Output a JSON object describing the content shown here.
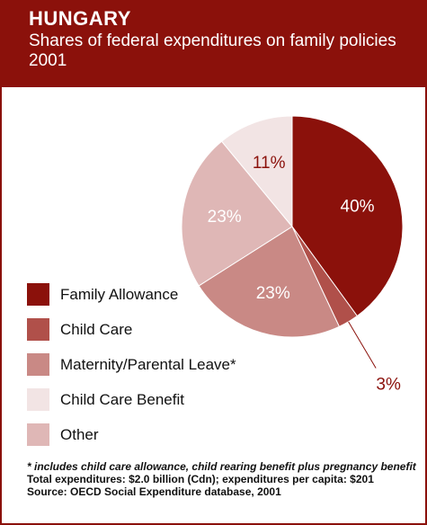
{
  "header": {
    "country": "HUNGARY",
    "subtitle": "Shares of federal expenditures on family policies",
    "year": "2001"
  },
  "colors": {
    "frame": "#8b110b",
    "family_allowance": "#8b110b",
    "child_care": "#b0504a",
    "maternity_parental": "#c98985",
    "child_care_benefit": "#f2e4e4",
    "other": "#dfb7b6"
  },
  "chart_data": {
    "type": "pie",
    "title": "Shares of federal expenditures on family policies",
    "slices": [
      {
        "label": "Family Allowance",
        "value": 40,
        "display": "40%"
      },
      {
        "label": "Child Care",
        "value": 3,
        "display": "3%"
      },
      {
        "label": "Maternity/Parental Leave*",
        "value": 23,
        "display": "23%"
      },
      {
        "label": "Other",
        "value": 23,
        "display": "23%"
      },
      {
        "label": "Child Care Benefit",
        "value": 11,
        "display": "11%"
      }
    ],
    "legend": [
      "Family Allowance",
      "Child Care",
      "Maternity/Parental Leave*",
      "Child Care Benefit",
      "Other"
    ],
    "legend_placement": "left"
  },
  "notes": {
    "footnote": "* includes child care allowance, child rearing benefit plus pregnancy benefit",
    "totals": "Total expenditures: $2.0 billion (Cdn); expenditures per capita: $201",
    "source": "Source: OECD Social Expenditure database, 2001"
  }
}
